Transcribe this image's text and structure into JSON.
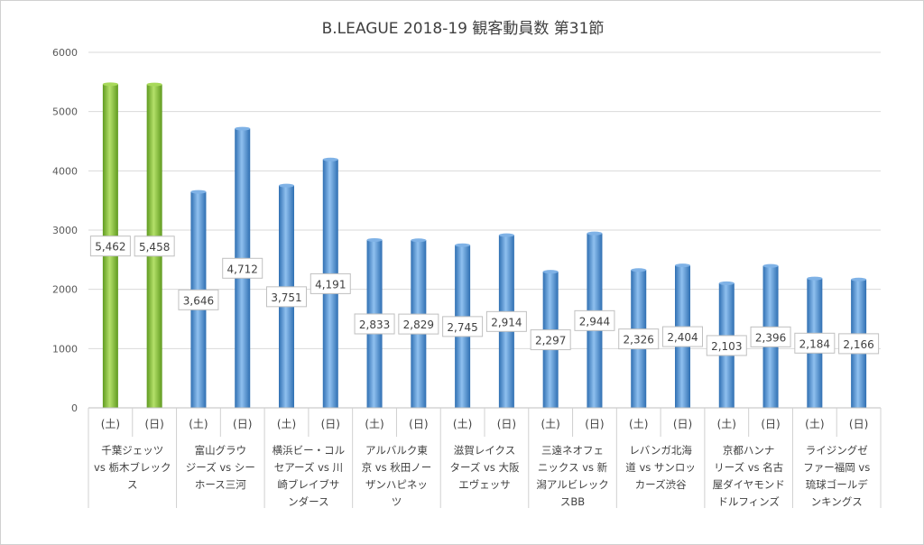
{
  "chart_data": {
    "type": "bar",
    "title": "B.LEAGUE 2018-19 観客動員数 第31節",
    "xlabel": "",
    "ylabel": "",
    "ylim": [
      0,
      6000
    ],
    "yticks": [
      0,
      1000,
      2000,
      3000,
      4000,
      5000,
      6000
    ],
    "grid": true,
    "legend": "none",
    "colors": {
      "highlight": "#8cc63f",
      "default": "#4a8fd6"
    },
    "groups": [
      {
        "label_lines": [
          "千葉ジェッツ",
          "vs 栃木ブレック",
          "ス"
        ],
        "days": [
          "(土)",
          "(日)"
        ],
        "values": [
          5462,
          5458
        ],
        "labels": [
          "5,462",
          "5,458"
        ],
        "highlight": true
      },
      {
        "label_lines": [
          "富山グラウ",
          "ジーズ vs シー",
          "ホース三河"
        ],
        "days": [
          "(土)",
          "(日)"
        ],
        "values": [
          3646,
          4712
        ],
        "labels": [
          "3,646",
          "4,712"
        ],
        "highlight": false
      },
      {
        "label_lines": [
          "横浜ビー・コル",
          "セアーズ vs 川",
          "崎ブレイブサ",
          "ンダース"
        ],
        "days": [
          "(土)",
          "(日)"
        ],
        "values": [
          3751,
          4191
        ],
        "labels": [
          "3,751",
          "4,191"
        ],
        "highlight": false
      },
      {
        "label_lines": [
          "アルバルク東",
          "京 vs 秋田ノー",
          "ザンハピネッ",
          "ツ"
        ],
        "days": [
          "(土)",
          "(日)"
        ],
        "values": [
          2833,
          2829
        ],
        "labels": [
          "2,833",
          "2,829"
        ],
        "highlight": false
      },
      {
        "label_lines": [
          "滋賀レイクス",
          "ターズ vs 大阪",
          "エヴェッサ"
        ],
        "days": [
          "(土)",
          "(日)"
        ],
        "values": [
          2745,
          2914
        ],
        "labels": [
          "2,745",
          "2,914"
        ],
        "highlight": false
      },
      {
        "label_lines": [
          "三遠ネオフェ",
          "ニックス vs 新",
          "潟アルビレック",
          "スBB"
        ],
        "days": [
          "(土)",
          "(日)"
        ],
        "values": [
          2297,
          2944
        ],
        "labels": [
          "2,297",
          "2,944"
        ],
        "highlight": false
      },
      {
        "label_lines": [
          "レバンガ北海",
          "道 vs サンロッ",
          "カーズ渋谷"
        ],
        "days": [
          "(土)",
          "(日)"
        ],
        "values": [
          2326,
          2404
        ],
        "labels": [
          "2,326",
          "2,404"
        ],
        "highlight": false
      },
      {
        "label_lines": [
          "京都ハンナ",
          "リーズ vs 名古",
          "屋ダイヤモンド",
          "ドルフィンズ"
        ],
        "days": [
          "(土)",
          "(日)"
        ],
        "values": [
          2103,
          2396
        ],
        "labels": [
          "2,103",
          "2,396"
        ],
        "highlight": false
      },
      {
        "label_lines": [
          "ライジングゼ",
          "ファー福岡 vs",
          "琉球ゴールデ",
          "ンキングス"
        ],
        "days": [
          "(土)",
          "(日)"
        ],
        "values": [
          2184,
          2166
        ],
        "labels": [
          "2,184",
          "2,166"
        ],
        "highlight": false
      }
    ]
  }
}
